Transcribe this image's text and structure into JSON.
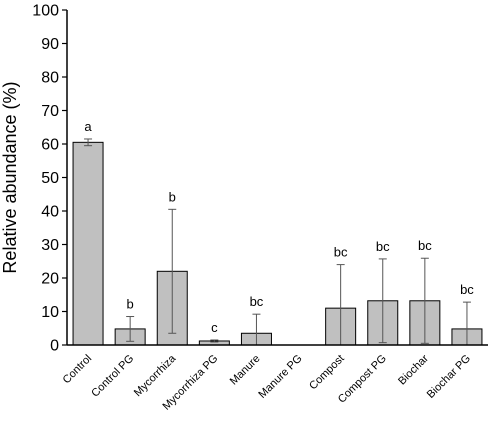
{
  "chart_data": {
    "type": "bar",
    "ylabel": "Relative abundance (%)",
    "xlabel": "",
    "ylim": [
      0,
      100
    ],
    "yticks": [
      0,
      10,
      20,
      30,
      40,
      50,
      60,
      70,
      80,
      90,
      100
    ],
    "grid": false,
    "categories": [
      "Control",
      "Control PG",
      "Mycorrhiza",
      "Mycorrhiza PG",
      "Manure",
      "Manure PG",
      "Compost",
      "Compost PG",
      "Biochar",
      "Biochar PG"
    ],
    "values": [
      60.5,
      4.8,
      22.0,
      1.2,
      3.5,
      0,
      11.0,
      13.2,
      13.2,
      4.8
    ],
    "errors": [
      1.0,
      3.7,
      18.5,
      0.3,
      5.7,
      0,
      13.0,
      12.5,
      12.7,
      8.0
    ],
    "letters": [
      "a",
      "b",
      "b",
      "c",
      "bc",
      "",
      "bc",
      "bc",
      "bc",
      "bc"
    ],
    "colors": {
      "bar_fill": "#c0c0c0",
      "bar_stroke": "#000000",
      "error_bar": "#555555"
    }
  }
}
